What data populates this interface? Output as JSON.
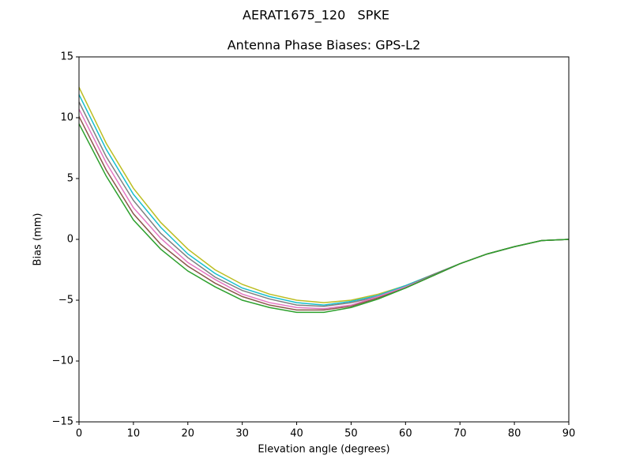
{
  "chart_data": {
    "type": "line",
    "suptitle": "AERAT1675_120   SPKE",
    "title": "Antenna Phase Biases: GPS-L2",
    "xlabel": "Elevation angle (degrees)",
    "ylabel": "Bias (mm)",
    "xlim": [
      0,
      90
    ],
    "ylim": [
      -15,
      15
    ],
    "xticks": [
      0,
      10,
      20,
      30,
      40,
      50,
      60,
      70,
      80,
      90
    ],
    "yticks": [
      {
        "value": -15,
        "label": "−15"
      },
      {
        "value": -10,
        "label": "−10"
      },
      {
        "value": -5,
        "label": "−5"
      },
      0,
      5,
      10,
      15
    ],
    "x": [
      0,
      5,
      10,
      15,
      20,
      25,
      30,
      35,
      40,
      45,
      50,
      55,
      60,
      65,
      70,
      75,
      80,
      85,
      90
    ],
    "series": [
      {
        "color": "#bcbd22",
        "values": [
          12.5,
          7.9,
          4.2,
          1.4,
          -0.8,
          -2.5,
          -3.7,
          -4.5,
          -5.0,
          -5.2,
          -5.0,
          -4.5,
          -3.8,
          -2.9,
          -2.0,
          -1.2,
          -0.6,
          -0.1,
          0
        ]
      },
      {
        "color": "#17becf",
        "values": [
          11.9,
          7.4,
          3.7,
          1.0,
          -1.2,
          -2.8,
          -4.0,
          -4.7,
          -5.2,
          -5.4,
          -5.1,
          -4.6,
          -3.8,
          -2.9,
          -2.0,
          -1.2,
          -0.6,
          -0.1,
          0
        ]
      },
      {
        "color": "#7f7f7f",
        "values": [
          11.3,
          6.8,
          3.2,
          0.5,
          -1.5,
          -3.1,
          -4.2,
          -4.9,
          -5.4,
          -5.5,
          -5.2,
          -4.7,
          -3.9,
          -2.9,
          -2.0,
          -1.2,
          -0.6,
          -0.1,
          0
        ]
      },
      {
        "color": "#e377c2",
        "values": [
          10.7,
          6.3,
          2.6,
          0.1,
          -1.9,
          -3.3,
          -4.5,
          -5.2,
          -5.6,
          -5.7,
          -5.4,
          -4.7,
          -3.9,
          -3.0,
          -2.0,
          -1.2,
          -0.6,
          -0.1,
          0
        ]
      },
      {
        "color": "#8c564b",
        "values": [
          10.1,
          5.7,
          2.1,
          -0.4,
          -2.2,
          -3.6,
          -4.7,
          -5.4,
          -5.8,
          -5.8,
          -5.5,
          -4.8,
          -4.0,
          -3.0,
          -2.0,
          -1.2,
          -0.6,
          -0.1,
          0
        ]
      },
      {
        "color": "#2ca02c",
        "values": [
          9.5,
          5.2,
          1.6,
          -0.8,
          -2.6,
          -3.9,
          -5.0,
          -5.6,
          -6.0,
          -6.0,
          -5.6,
          -4.9,
          -4.0,
          -3.0,
          -2.0,
          -1.2,
          -0.6,
          -0.1,
          0
        ]
      }
    ]
  }
}
